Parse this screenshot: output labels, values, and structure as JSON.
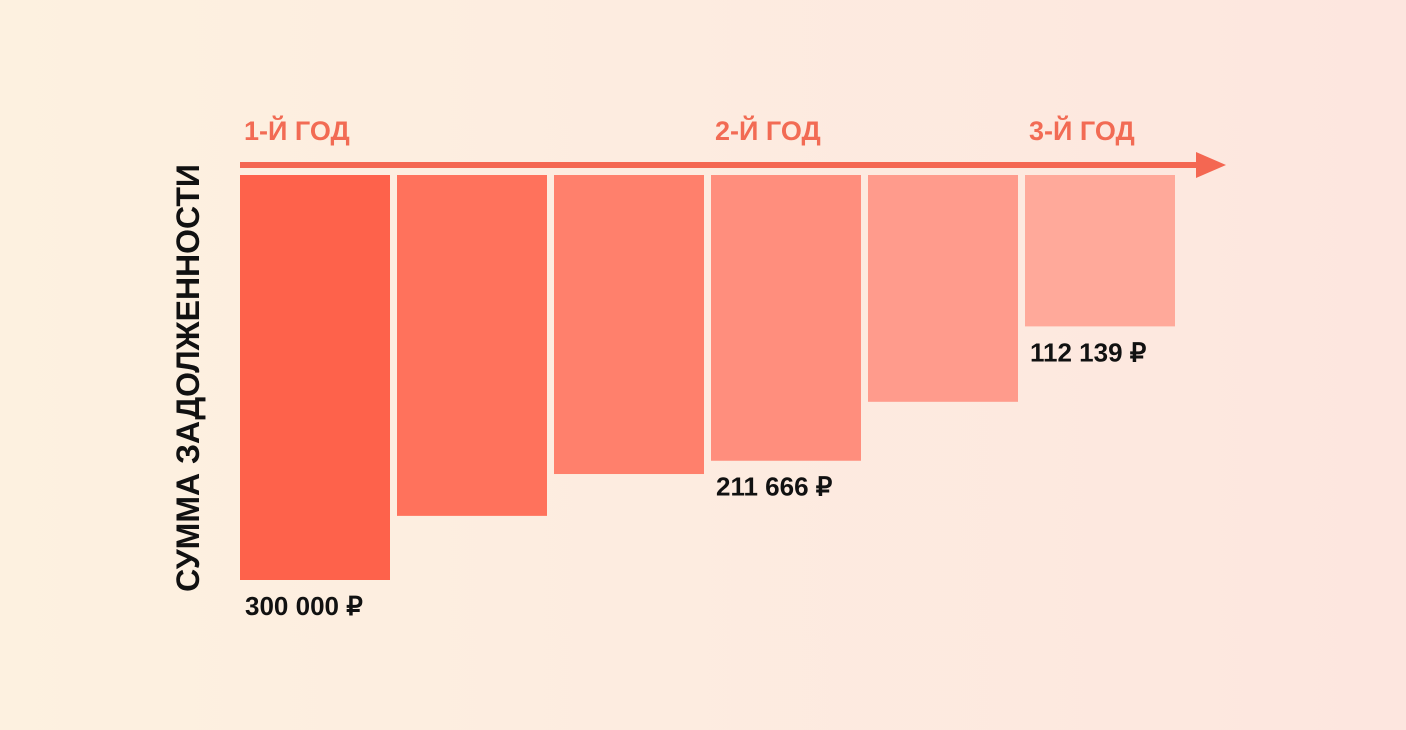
{
  "chart_data": {
    "type": "bar",
    "ylabel": "СУММА ЗАДОЛЖЕННОСТИ",
    "year_labels": [
      {
        "text": "1-Й ГОД",
        "bar_index": 0
      },
      {
        "text": "2-Й ГОД",
        "bar_index": 3
      },
      {
        "text": "3-Й ГОД",
        "bar_index": 5
      }
    ],
    "values": [
      300000,
      252500,
      221500,
      211666,
      168000,
      112139
    ],
    "value_labels": [
      {
        "text": "300 000 ₽",
        "bar_index": 0
      },
      {
        "text": "211 666 ₽",
        "bar_index": 3
      },
      {
        "text": "112 139 ₽",
        "bar_index": 5
      }
    ],
    "ylim": [
      0,
      300000
    ],
    "orientation": "hanging-from-top",
    "colors": [
      "#fe624b",
      "#ff725c",
      "#ff806c",
      "#ff8e7d",
      "#ff9b8c",
      "#ffa99a"
    ],
    "arrow_color": "#f46752"
  }
}
